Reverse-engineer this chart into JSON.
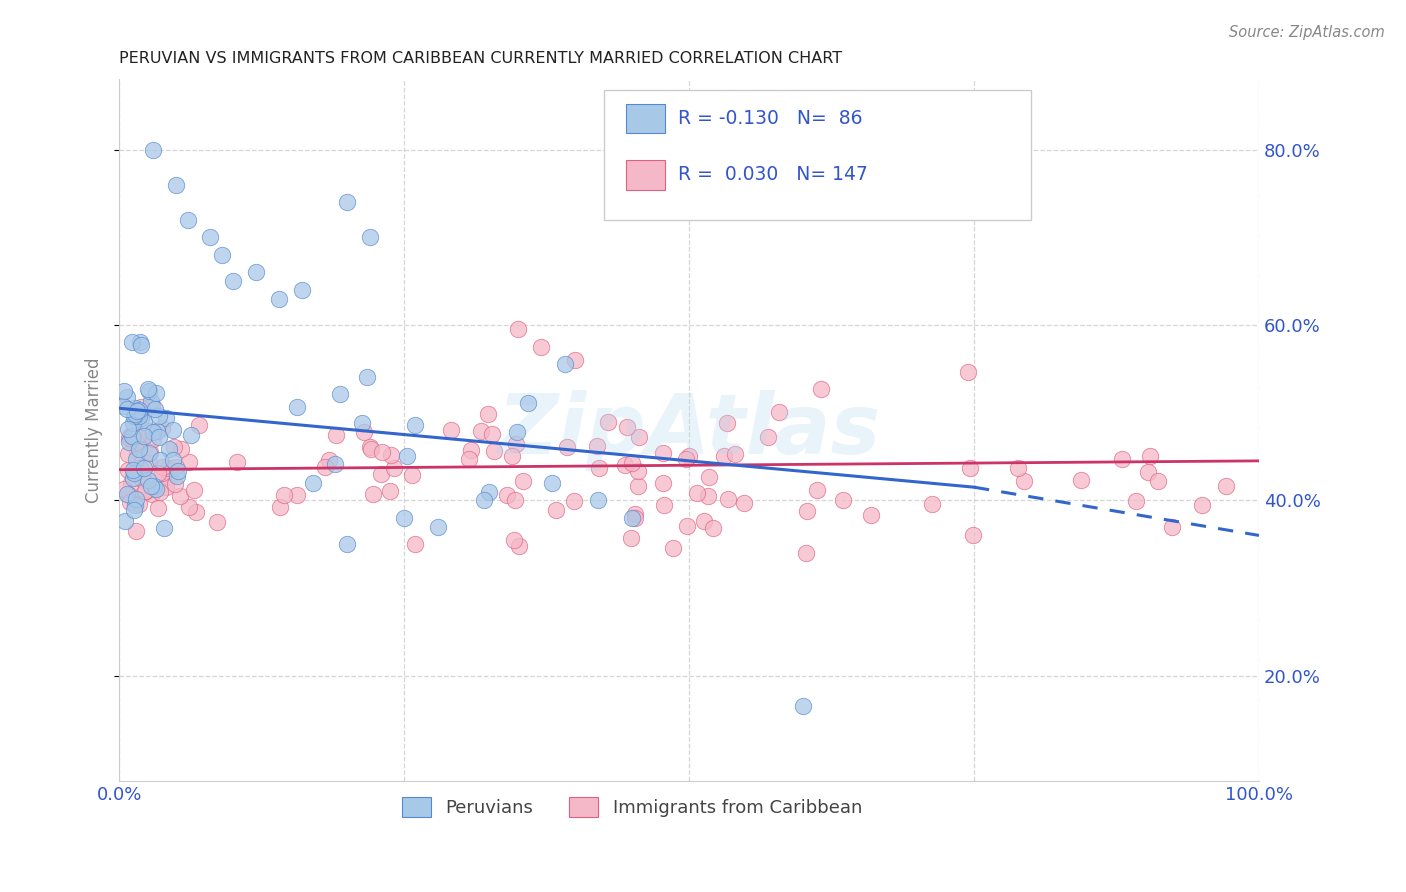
{
  "title": "PERUVIAN VS IMMIGRANTS FROM CARIBBEAN CURRENTLY MARRIED CORRELATION CHART",
  "source": "Source: ZipAtlas.com",
  "ylabel": "Currently Married",
  "xlim": [
    0,
    1.0
  ],
  "ylim": [
    0.08,
    0.88
  ],
  "yticks": [
    0.2,
    0.4,
    0.6,
    0.8
  ],
  "ytick_labels": [
    "20.0%",
    "40.0%",
    "60.0%",
    "80.0%"
  ],
  "xticks": [
    0.0,
    0.25,
    0.5,
    0.75,
    1.0
  ],
  "xtick_labels": [
    "0.0%",
    "",
    "",
    "",
    "100.0%"
  ],
  "blue_R": -0.13,
  "blue_N": 86,
  "pink_R": 0.03,
  "pink_N": 147,
  "blue_color": "#a8c8e8",
  "pink_color": "#f4b8c8",
  "blue_edge_color": "#5588cc",
  "pink_edge_color": "#e06080",
  "blue_line_color": "#3366cc",
  "pink_line_color": "#cc3366",
  "legend_label_blue": "Peruvians",
  "legend_label_pink": "Immigrants from Caribbean",
  "watermark": "ZipAtlas",
  "legend_text_color": "#3355cc",
  "blue_line_y0": 0.505,
  "blue_line_y_at_075": 0.415,
  "blue_line_y1": 0.36,
  "pink_line_y0": 0.435,
  "pink_line_y1": 0.445
}
